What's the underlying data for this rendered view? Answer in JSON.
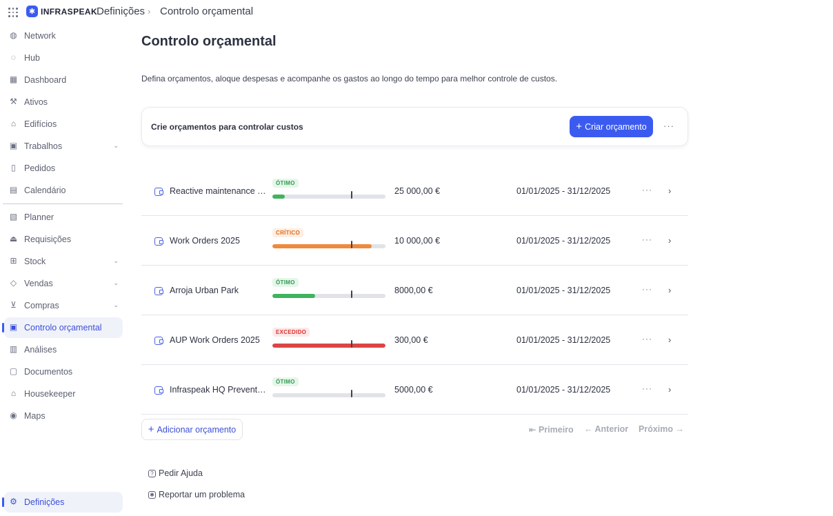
{
  "header": {
    "brand": "INFRASPEAK",
    "breadcrumb": [
      "Definições",
      "Controlo orçamental"
    ]
  },
  "sidebar": {
    "items": [
      {
        "label": "Network",
        "icon": "globe-icon"
      },
      {
        "label": "Hub",
        "icon": "hub-icon"
      },
      {
        "label": "Dashboard",
        "icon": "dashboard-icon"
      },
      {
        "label": "Ativos",
        "icon": "wrench-icon"
      },
      {
        "label": "Edifícios",
        "icon": "building-icon"
      },
      {
        "label": "Trabalhos",
        "icon": "calendar-icon",
        "expandable": true
      },
      {
        "label": "Pedidos",
        "icon": "clipboard-icon"
      },
      {
        "label": "Calendário",
        "icon": "calendar-grid-icon"
      },
      {
        "label": "Planner",
        "icon": "planner-icon"
      },
      {
        "label": "Requisições",
        "icon": "requisition-icon"
      },
      {
        "label": "Stock",
        "icon": "stock-icon",
        "expandable": true
      },
      {
        "label": "Vendas",
        "icon": "tag-icon",
        "expandable": true
      },
      {
        "label": "Compras",
        "icon": "cart-icon",
        "expandable": true
      },
      {
        "label": "Controlo orçamental",
        "icon": "wallet-icon",
        "active": true
      },
      {
        "label": "Análises",
        "icon": "chart-icon"
      },
      {
        "label": "Documentos",
        "icon": "document-icon"
      },
      {
        "label": "Housekeeper",
        "icon": "housekeeper-icon"
      },
      {
        "label": "Maps",
        "icon": "map-pin-icon"
      }
    ],
    "settings": {
      "label": "Definições",
      "icon": "gear-icon",
      "active": true
    }
  },
  "main": {
    "title": "Controlo orçamental",
    "description": "Defina orçamentos, aloque despesas e acompanhe os gastos ao longo do tempo para melhor controle de custos.",
    "create_card": {
      "title": "Crie orçamentos para controlar custos",
      "button_label": "Criar orçamento"
    },
    "budgets": [
      {
        "name": "Reactive maintenance S...",
        "status": "ÓTIMO",
        "status_kind": "ok",
        "progress": 0.11,
        "color": "#3fb35f",
        "amount": "25 000,00 €",
        "dates": "01/01/2025 - 31/12/2025"
      },
      {
        "name": "Work Orders 2025",
        "status": "CRÍTICO",
        "status_kind": "crit",
        "progress": 0.88,
        "color": "#ef8a3c",
        "amount": "10 000,00 €",
        "dates": "01/01/2025 - 31/12/2025"
      },
      {
        "name": "Arroja Urban Park",
        "status": "ÓTIMO",
        "status_kind": "ok",
        "progress": 0.38,
        "color": "#3fb35f",
        "amount": "8000,00 €",
        "dates": "01/01/2025 - 31/12/2025"
      },
      {
        "name": "AUP Work Orders 2025",
        "status": "EXCEDIDO",
        "status_kind": "exc",
        "progress": 1.0,
        "color": "#dc4545",
        "amount": "300,00 €",
        "dates": "01/01/2025 - 31/12/2025"
      },
      {
        "name": "Infraspeak HQ Preventive",
        "status": "ÓTIMO",
        "status_kind": "ok",
        "progress": 0.0,
        "color": "#3fb35f",
        "amount": "5000,00 €",
        "dates": "01/01/2025 - 31/12/2025"
      }
    ],
    "add_button": "Adicionar orçamento",
    "pagination": {
      "first": "Primeiro",
      "prev": "Anterior",
      "next": "Próximo"
    },
    "help_links": [
      "Pedir Ajuda",
      "Reportar um problema"
    ]
  }
}
